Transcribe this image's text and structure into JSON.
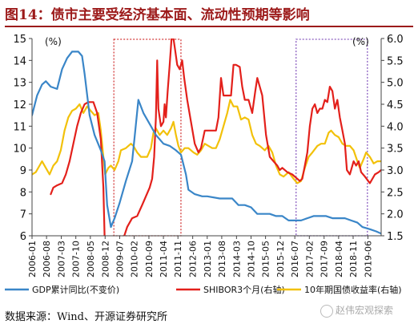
{
  "page": {
    "title": "图14：债市主要受经济基本面、流动性预期等影响",
    "source": "数据来源：Wind、开源证券研究所",
    "watermark": "赵伟宏观探索"
  },
  "chart_data": {
    "type": "line",
    "title": "",
    "left_axis": {
      "unit": "(%)",
      "min": 6,
      "max": 15,
      "ticks": [
        6,
        7,
        8,
        9,
        10,
        11,
        12,
        13,
        14,
        15
      ]
    },
    "right_axis": {
      "unit": "(%)",
      "min": 1.5,
      "max": 6.0,
      "ticks": [
        "1.5",
        "2.0",
        "2.5",
        "3.0",
        "3.5",
        "4.0",
        "4.5",
        "5.0",
        "5.5",
        "6.0"
      ]
    },
    "x_range": [
      2006.0,
      2019.95
    ],
    "x_ticks": [
      {
        "label": "2006-01",
        "t": 2006.0
      },
      {
        "label": "2006-08",
        "t": 2006.58
      },
      {
        "label": "2007-03",
        "t": 2007.17
      },
      {
        "label": "2007-10",
        "t": 2007.75
      },
      {
        "label": "2008-05",
        "t": 2008.33
      },
      {
        "label": "2008-12",
        "t": 2008.92
      },
      {
        "label": "2009-07",
        "t": 2009.5
      },
      {
        "label": "2010-02",
        "t": 2010.08
      },
      {
        "label": "2010-09",
        "t": 2010.67
      },
      {
        "label": "2011-04",
        "t": 2011.25
      },
      {
        "label": "2011-11",
        "t": 2011.83
      },
      {
        "label": "2012-06",
        "t": 2012.42
      },
      {
        "label": "2013-01",
        "t": 2013.0
      },
      {
        "label": "2013-08",
        "t": 2013.58
      },
      {
        "label": "2014-03",
        "t": 2014.17
      },
      {
        "label": "2014-10",
        "t": 2014.75
      },
      {
        "label": "2015-05",
        "t": 2015.33
      },
      {
        "label": "2015-12",
        "t": 2015.92
      },
      {
        "label": "2016-07",
        "t": 2016.5
      },
      {
        "label": "2017-02",
        "t": 2017.08
      },
      {
        "label": "2017-09",
        "t": 2017.67
      },
      {
        "label": "2018-04",
        "t": 2018.25
      },
      {
        "label": "2018-11",
        "t": 2018.83
      },
      {
        "label": "2019-06",
        "t": 2019.42
      }
    ],
    "highlight_boxes": [
      {
        "x0": 2009.27,
        "x1": 2011.95,
        "color": "#d33a3a"
      },
      {
        "x0": 2016.55,
        "x1": 2019.4,
        "color": "#8a5cc0"
      }
    ],
    "series": [
      {
        "name": "GDP累计同比(不变价)",
        "axis": "left",
        "color": "#3a86c8",
        "points": [
          [
            2006.0,
            11.5
          ],
          [
            2006.2,
            12.4
          ],
          [
            2006.4,
            12.9
          ],
          [
            2006.55,
            13.05
          ],
          [
            2006.75,
            12.8
          ],
          [
            2007.0,
            12.7
          ],
          [
            2007.2,
            13.6
          ],
          [
            2007.4,
            14.1
          ],
          [
            2007.6,
            14.4
          ],
          [
            2007.85,
            14.4
          ],
          [
            2008.0,
            14.2
          ],
          [
            2008.1,
            13.4
          ],
          [
            2008.3,
            11.5
          ],
          [
            2008.5,
            10.6
          ],
          [
            2008.75,
            9.9
          ],
          [
            2008.9,
            9.4
          ],
          [
            2009.0,
            7.4
          ],
          [
            2009.15,
            6.4
          ],
          [
            2009.3,
            6.8
          ],
          [
            2009.5,
            7.5
          ],
          [
            2009.75,
            8.5
          ],
          [
            2010.0,
            9.4
          ],
          [
            2010.1,
            10.5
          ],
          [
            2010.25,
            12.2
          ],
          [
            2010.45,
            11.6
          ],
          [
            2010.7,
            11.1
          ],
          [
            2010.95,
            10.6
          ],
          [
            2011.25,
            10.2
          ],
          [
            2011.5,
            10.1
          ],
          [
            2011.75,
            9.9
          ],
          [
            2011.95,
            9.7
          ],
          [
            2012.15,
            8.8
          ],
          [
            2012.25,
            8.1
          ],
          [
            2012.5,
            7.9
          ],
          [
            2012.8,
            7.8
          ],
          [
            2013.0,
            7.8
          ],
          [
            2013.5,
            7.7
          ],
          [
            2013.75,
            7.7
          ],
          [
            2014.0,
            7.7
          ],
          [
            2014.25,
            7.4
          ],
          [
            2014.5,
            7.4
          ],
          [
            2014.75,
            7.3
          ],
          [
            2015.0,
            7.0
          ],
          [
            2015.25,
            7.0
          ],
          [
            2015.5,
            7.0
          ],
          [
            2015.75,
            6.9
          ],
          [
            2016.0,
            6.9
          ],
          [
            2016.25,
            6.7
          ],
          [
            2016.75,
            6.7
          ],
          [
            2017.0,
            6.8
          ],
          [
            2017.25,
            6.9
          ],
          [
            2017.75,
            6.9
          ],
          [
            2018.0,
            6.8
          ],
          [
            2018.3,
            6.8
          ],
          [
            2018.5,
            6.8
          ],
          [
            2018.75,
            6.7
          ],
          [
            2019.0,
            6.6
          ],
          [
            2019.2,
            6.4
          ],
          [
            2019.5,
            6.3
          ],
          [
            2019.75,
            6.2
          ],
          [
            2019.95,
            6.1
          ]
        ]
      },
      {
        "name": "SHIBOR3个月(右轴)",
        "axis": "right",
        "color": "#e3201b",
        "points": [
          [
            2006.75,
            2.45
          ],
          [
            2006.85,
            2.6
          ],
          [
            2007.0,
            2.65
          ],
          [
            2007.2,
            2.7
          ],
          [
            2007.35,
            2.9
          ],
          [
            2007.5,
            3.2
          ],
          [
            2007.65,
            3.6
          ],
          [
            2007.8,
            4.0
          ],
          [
            2007.95,
            4.3
          ],
          [
            2008.1,
            4.5
          ],
          [
            2008.25,
            4.55
          ],
          [
            2008.45,
            4.55
          ],
          [
            2008.6,
            4.3
          ],
          [
            2008.75,
            3.7
          ],
          [
            2008.85,
            2.6
          ],
          [
            2008.9,
            1.5
          ],
          [
            2008.95,
            1.25
          ],
          [
            2009.1,
            1.1
          ],
          [
            2009.4,
            1.15
          ],
          [
            2009.6,
            1.35
          ],
          [
            2009.8,
            1.7
          ],
          [
            2010.0,
            1.9
          ],
          [
            2010.2,
            1.95
          ],
          [
            2010.4,
            2.2
          ],
          [
            2010.55,
            2.4
          ],
          [
            2010.7,
            2.6
          ],
          [
            2010.8,
            2.8
          ],
          [
            2010.88,
            3.3
          ],
          [
            2010.95,
            4.2
          ],
          [
            2011.0,
            5.5
          ],
          [
            2011.05,
            4.4
          ],
          [
            2011.15,
            4.0
          ],
          [
            2011.25,
            4.1
          ],
          [
            2011.3,
            4.5
          ],
          [
            2011.35,
            4.2
          ],
          [
            2011.42,
            4.8
          ],
          [
            2011.5,
            5.4
          ],
          [
            2011.6,
            6.2
          ],
          [
            2011.7,
            5.8
          ],
          [
            2011.8,
            5.4
          ],
          [
            2011.9,
            5.3
          ],
          [
            2012.0,
            5.5
          ],
          [
            2012.08,
            5.1
          ],
          [
            2012.2,
            4.6
          ],
          [
            2012.35,
            4.1
          ],
          [
            2012.5,
            3.6
          ],
          [
            2012.65,
            3.4
          ],
          [
            2012.75,
            3.5
          ],
          [
            2012.9,
            3.9
          ],
          [
            2013.0,
            3.9
          ],
          [
            2013.2,
            3.9
          ],
          [
            2013.35,
            3.9
          ],
          [
            2013.45,
            4.2
          ],
          [
            2013.55,
            5.1
          ],
          [
            2013.65,
            4.7
          ],
          [
            2013.8,
            4.7
          ],
          [
            2013.95,
            4.7
          ],
          [
            2014.05,
            5.4
          ],
          [
            2014.15,
            5.4
          ],
          [
            2014.3,
            5.35
          ],
          [
            2014.4,
            4.9
          ],
          [
            2014.5,
            4.6
          ],
          [
            2014.65,
            4.6
          ],
          [
            2014.8,
            4.3
          ],
          [
            2014.92,
            4.8
          ],
          [
            2015.0,
            5.1
          ],
          [
            2015.1,
            4.9
          ],
          [
            2015.2,
            4.7
          ],
          [
            2015.35,
            3.8
          ],
          [
            2015.5,
            3.3
          ],
          [
            2015.65,
            3.2
          ],
          [
            2015.8,
            3.1
          ],
          [
            2015.9,
            3.0
          ],
          [
            2016.0,
            3.05
          ],
          [
            2016.2,
            2.95
          ],
          [
            2016.4,
            2.9
          ],
          [
            2016.6,
            2.8
          ],
          [
            2016.7,
            2.75
          ],
          [
            2016.8,
            2.8
          ],
          [
            2016.9,
            3.1
          ],
          [
            2017.0,
            3.4
          ],
          [
            2017.1,
            4.0
          ],
          [
            2017.2,
            4.4
          ],
          [
            2017.3,
            4.5
          ],
          [
            2017.4,
            4.3
          ],
          [
            2017.5,
            4.4
          ],
          [
            2017.6,
            4.4
          ],
          [
            2017.7,
            4.6
          ],
          [
            2017.8,
            4.55
          ],
          [
            2017.9,
            4.9
          ],
          [
            2018.0,
            4.8
          ],
          [
            2018.1,
            4.4
          ],
          [
            2018.2,
            4.6
          ],
          [
            2018.3,
            4.2
          ],
          [
            2018.4,
            3.9
          ],
          [
            2018.5,
            3.6
          ],
          [
            2018.58,
            3.0
          ],
          [
            2018.7,
            2.9
          ],
          [
            2018.85,
            3.2
          ],
          [
            2018.95,
            3.1
          ],
          [
            2019.05,
            3.2
          ],
          [
            2019.15,
            2.95
          ],
          [
            2019.3,
            2.85
          ],
          [
            2019.5,
            2.7
          ],
          [
            2019.7,
            2.9
          ],
          [
            2019.85,
            2.95
          ],
          [
            2019.95,
            3.0
          ]
        ]
      },
      {
        "name": "10年期国债收益率(右轴)",
        "axis": "right",
        "color": "#f2c10a",
        "points": [
          [
            2006.0,
            2.9
          ],
          [
            2006.15,
            2.95
          ],
          [
            2006.3,
            3.1
          ],
          [
            2006.4,
            3.2
          ],
          [
            2006.55,
            3.05
          ],
          [
            2006.7,
            2.9
          ],
          [
            2006.85,
            3.1
          ],
          [
            2007.0,
            3.2
          ],
          [
            2007.15,
            3.45
          ],
          [
            2007.3,
            3.9
          ],
          [
            2007.45,
            4.2
          ],
          [
            2007.6,
            4.35
          ],
          [
            2007.75,
            4.4
          ],
          [
            2007.9,
            4.5
          ],
          [
            2008.05,
            4.3
          ],
          [
            2008.2,
            4.45
          ],
          [
            2008.35,
            4.35
          ],
          [
            2008.5,
            4.25
          ],
          [
            2008.65,
            4.3
          ],
          [
            2008.75,
            3.9
          ],
          [
            2008.85,
            3.3
          ],
          [
            2008.92,
            2.9
          ],
          [
            2009.05,
            3.05
          ],
          [
            2009.15,
            3.1
          ],
          [
            2009.3,
            3.0
          ],
          [
            2009.45,
            3.2
          ],
          [
            2009.55,
            3.45
          ],
          [
            2009.75,
            3.5
          ],
          [
            2009.95,
            3.6
          ],
          [
            2010.05,
            3.55
          ],
          [
            2010.2,
            3.4
          ],
          [
            2010.35,
            3.3
          ],
          [
            2010.5,
            3.3
          ],
          [
            2010.6,
            3.3
          ],
          [
            2010.75,
            3.5
          ],
          [
            2010.85,
            3.85
          ],
          [
            2010.95,
            3.95
          ],
          [
            2011.1,
            3.8
          ],
          [
            2011.25,
            3.9
          ],
          [
            2011.4,
            3.8
          ],
          [
            2011.55,
            3.95
          ],
          [
            2011.65,
            4.1
          ],
          [
            2011.75,
            3.8
          ],
          [
            2011.85,
            3.55
          ],
          [
            2011.95,
            3.4
          ],
          [
            2012.1,
            3.5
          ],
          [
            2012.25,
            3.5
          ],
          [
            2012.45,
            3.4
          ],
          [
            2012.6,
            3.35
          ],
          [
            2012.75,
            3.45
          ],
          [
            2012.9,
            3.6
          ],
          [
            2013.05,
            3.55
          ],
          [
            2013.2,
            3.5
          ],
          [
            2013.35,
            3.5
          ],
          [
            2013.5,
            3.7
          ],
          [
            2013.65,
            4.0
          ],
          [
            2013.8,
            4.3
          ],
          [
            2013.92,
            4.6
          ],
          [
            2014.05,
            4.45
          ],
          [
            2014.2,
            4.45
          ],
          [
            2014.35,
            4.15
          ],
          [
            2014.5,
            4.2
          ],
          [
            2014.65,
            4.15
          ],
          [
            2014.8,
            3.8
          ],
          [
            2014.95,
            3.6
          ],
          [
            2015.1,
            3.55
          ],
          [
            2015.3,
            3.45
          ],
          [
            2015.45,
            3.55
          ],
          [
            2015.6,
            3.4
          ],
          [
            2015.75,
            3.1
          ],
          [
            2015.9,
            2.9
          ],
          [
            2016.05,
            2.85
          ],
          [
            2016.25,
            2.95
          ],
          [
            2016.45,
            2.8
          ],
          [
            2016.6,
            2.7
          ],
          [
            2016.75,
            2.75
          ],
          [
            2016.9,
            3.05
          ],
          [
            2017.05,
            3.3
          ],
          [
            2017.2,
            3.4
          ],
          [
            2017.4,
            3.55
          ],
          [
            2017.55,
            3.6
          ],
          [
            2017.7,
            3.6
          ],
          [
            2017.85,
            3.85
          ],
          [
            2017.95,
            3.9
          ],
          [
            2018.1,
            3.8
          ],
          [
            2018.25,
            3.75
          ],
          [
            2018.4,
            3.6
          ],
          [
            2018.55,
            3.55
          ],
          [
            2018.7,
            3.55
          ],
          [
            2018.85,
            3.45
          ],
          [
            2019.0,
            3.2
          ],
          [
            2019.1,
            3.05
          ],
          [
            2019.25,
            3.25
          ],
          [
            2019.35,
            3.4
          ],
          [
            2019.5,
            3.3
          ],
          [
            2019.65,
            3.15
          ],
          [
            2019.8,
            3.2
          ],
          [
            2019.95,
            3.2
          ]
        ]
      }
    ]
  }
}
